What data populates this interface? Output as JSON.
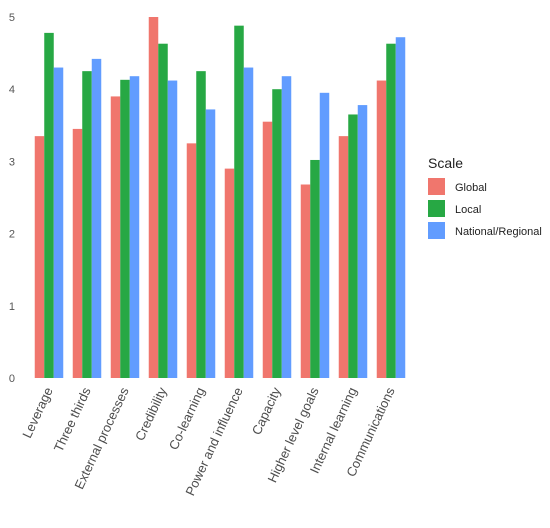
{
  "chart_data": {
    "type": "bar",
    "title": "",
    "xlabel": "",
    "ylabel": "",
    "ylim": [
      0,
      5
    ],
    "yticks": [
      0,
      1,
      2,
      3,
      4,
      5
    ],
    "grid": false,
    "legend_position": "right",
    "legend_title": "Scale",
    "categories": [
      "Leverage",
      "Three thirds",
      "External processes",
      "Credibility",
      "Co-learning",
      "Power and influence",
      "Capacity",
      "Higher level goals",
      "Internal learning",
      "Communications"
    ],
    "series": [
      {
        "name": "Global",
        "color": "#f0766d",
        "values": [
          3.35,
          3.45,
          3.9,
          5.0,
          3.25,
          2.9,
          3.55,
          2.68,
          3.35,
          4.12
        ]
      },
      {
        "name": "Local",
        "color": "#27a844",
        "values": [
          4.78,
          4.25,
          4.13,
          4.63,
          4.25,
          4.88,
          4.0,
          3.02,
          3.65,
          4.63
        ]
      },
      {
        "name": "National/Regional",
        "color": "#619cff",
        "values": [
          4.3,
          4.42,
          4.18,
          4.12,
          3.72,
          4.3,
          4.18,
          3.95,
          3.78,
          4.72
        ]
      }
    ]
  }
}
